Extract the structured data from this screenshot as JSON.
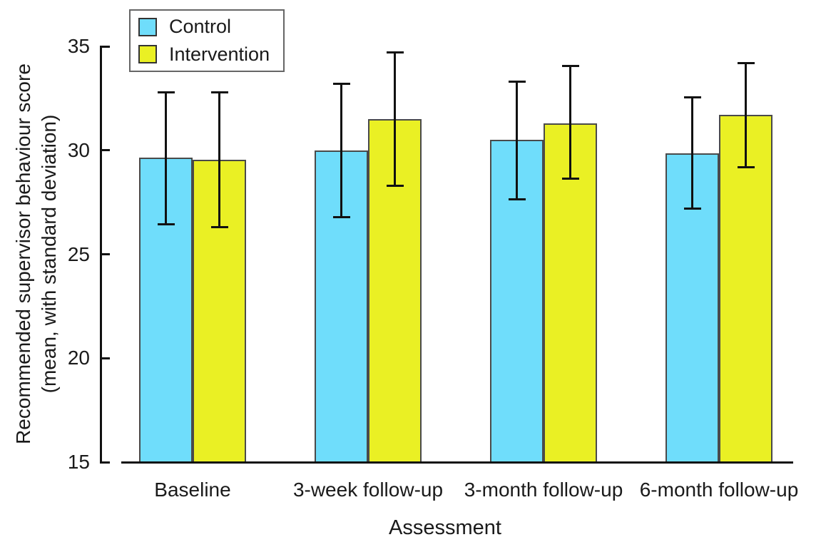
{
  "chart_data": {
    "type": "bar",
    "title": "",
    "categories": [
      "Baseline",
      "3-week follow-up",
      "3-month follow-up",
      "6-month follow-up"
    ],
    "series": [
      {
        "name": "Control",
        "color": "#6FDDFB",
        "means": [
          29.65,
          30.0,
          30.5,
          29.85
        ],
        "error_upper": [
          32.8,
          33.2,
          33.3,
          32.55
        ],
        "error_lower": [
          26.45,
          26.8,
          27.65,
          27.2
        ]
      },
      {
        "name": "Intervention",
        "color": "#EAF024",
        "means": [
          29.55,
          31.5,
          31.3,
          31.7
        ],
        "error_upper": [
          32.8,
          34.7,
          34.05,
          34.2
        ],
        "error_lower": [
          26.3,
          28.3,
          28.65,
          29.2
        ]
      }
    ],
    "xlabel": "Assessment",
    "ylabel": "Recommended supervisor behaviour score (mean, with standard deviation)",
    "ylabel_lines": [
      "Recommended supervisor behaviour score",
      "(mean, with standard deviation)"
    ],
    "ylim": [
      15,
      35
    ],
    "yticks": [
      35,
      30,
      25,
      20,
      15
    ],
    "grid": false,
    "legend_position": "top-left",
    "bar_edge_color": "#4a4a4a",
    "error_bar_color": "#111111",
    "axis_color": "#111111",
    "text_color": "#1a1a1a"
  }
}
